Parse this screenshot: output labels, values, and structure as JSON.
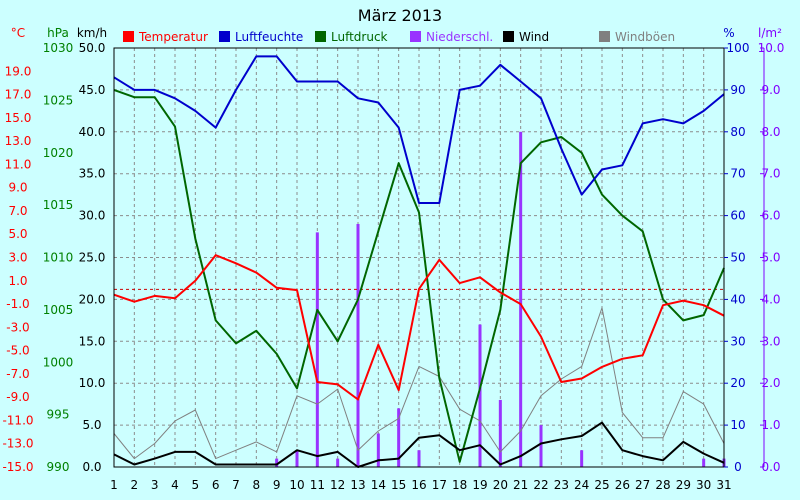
{
  "chart_data": {
    "type": "line",
    "title": "März 2013",
    "x": [
      1,
      2,
      3,
      4,
      5,
      6,
      7,
      8,
      9,
      10,
      11,
      12,
      13,
      14,
      15,
      16,
      17,
      18,
      19,
      20,
      21,
      22,
      23,
      24,
      25,
      26,
      27,
      28,
      29,
      30,
      31
    ],
    "axes": {
      "temp": {
        "unit": "°C",
        "color": "#ff0000",
        "min": -15,
        "max": 21,
        "ticks": [
          19.0,
          17.0,
          15.0,
          13.0,
          11.0,
          9.0,
          7.0,
          5.0,
          3.0,
          1.0,
          -1.0,
          -3.0,
          -5.0,
          -7.0,
          -9.0,
          -11.0,
          -13.0,
          -15.0
        ],
        "labels": [
          "19.0",
          "17.0",
          "15.0",
          "13.0",
          "11.0",
          "9.0",
          "7.0",
          "5.0",
          "3.0",
          "1.0",
          "-1.0",
          "-3.0",
          "-5.0",
          "-7.0",
          "-9.0",
          "-11.0",
          "-13.0",
          "-15.0"
        ]
      },
      "press": {
        "unit": "hPa",
        "color": "#008000",
        "min": 990,
        "max": 1030,
        "ticks": [
          1030,
          1025,
          1020,
          1015,
          1010,
          1005,
          1000,
          995,
          990
        ],
        "labels": [
          "1030",
          "1025",
          "1020",
          "1015",
          "1010",
          "1005",
          "1000",
          "995",
          "990"
        ]
      },
      "wind": {
        "unit": "km/h",
        "color": "#000000",
        "min": 0,
        "max": 50,
        "ticks": [
          50,
          45,
          40,
          35,
          30,
          25,
          20,
          15,
          10,
          5,
          0
        ],
        "labels": [
          "50.0",
          "45.0",
          "40.0",
          "35.0",
          "30.0",
          "25.0",
          "20.0",
          "15.0",
          "10.0",
          "5.0",
          "0.0"
        ]
      },
      "hum": {
        "unit": "%",
        "color": "#0000cc",
        "min": 0,
        "max": 100,
        "ticks": [
          100,
          90,
          80,
          70,
          60,
          50,
          40,
          30,
          20,
          10,
          0
        ],
        "labels": [
          "100",
          "90",
          "80",
          "70",
          "60",
          "50",
          "40",
          "30",
          "20",
          "10",
          "0"
        ]
      },
      "rain": {
        "unit": "l/m²",
        "color": "#8000ff",
        "min": 0,
        "max": 10,
        "ticks": [
          10,
          9,
          8,
          7,
          6,
          5,
          4,
          3,
          2,
          1,
          0
        ],
        "labels": [
          "10.0",
          "9.0",
          "8.0",
          "7.0",
          "6.0",
          "5.0",
          "4.0",
          "3.0",
          "2.0",
          "1.0",
          "0.0"
        ]
      }
    },
    "series": [
      {
        "name": "Temperatur",
        "axis": "temp",
        "color": "#ff0000",
        "type": "line",
        "values": [
          -0.2,
          -0.8,
          -0.3,
          -0.5,
          1.0,
          3.2,
          2.5,
          1.7,
          0.4,
          0.2,
          -7.7,
          -7.9,
          -9.2,
          -4.5,
          -8.4,
          0.3,
          2.8,
          0.8,
          1.3,
          0.0,
          -1.0,
          -3.8,
          -7.7,
          -7.4,
          -6.4,
          -5.7,
          -5.4,
          -1.1,
          -0.7,
          -1.1,
          -2.0
        ]
      },
      {
        "name": "Luftfeuchte",
        "axis": "hum",
        "color": "#0000cc",
        "type": "line",
        "values": [
          93,
          90,
          90,
          88,
          85,
          81,
          90,
          98,
          98,
          92,
          92,
          92,
          88,
          87,
          81,
          63,
          63,
          90,
          91,
          96,
          92,
          88,
          76,
          65,
          71,
          72,
          82,
          83,
          82,
          85,
          89
        ]
      },
      {
        "name": "Luftdruck",
        "axis": "press",
        "color": "#006600",
        "type": "line",
        "values": [
          1026.0,
          1025.3,
          1025.3,
          1022.5,
          1011.8,
          1004.0,
          1001.8,
          1003.0,
          1000.8,
          997.5,
          1005.0,
          1002.0,
          1006.0,
          1012.5,
          1019.0,
          1014.3,
          998.5,
          990.5,
          997.5,
          1005.0,
          1019.0,
          1021.0,
          1021.5,
          1020.0,
          1016.0,
          1014.0,
          1012.5,
          1006.0,
          1004.0,
          1004.5,
          1009.0
        ]
      },
      {
        "name": "Niederschl.",
        "axis": "rain",
        "color": "#9933ff",
        "type": "bar",
        "values": [
          0,
          0,
          0,
          0,
          0,
          0,
          0,
          0,
          0.2,
          0.4,
          5.6,
          0.2,
          5.8,
          0.8,
          1.4,
          0.4,
          0,
          0,
          3.4,
          1.6,
          8.0,
          1.0,
          0,
          0.4,
          0,
          0,
          0,
          0,
          0,
          0.2,
          0.2
        ]
      },
      {
        "name": "Wind",
        "axis": "wind",
        "color": "#000000",
        "type": "line",
        "values": [
          1.5,
          0.3,
          1.0,
          1.8,
          1.8,
          0.3,
          0.3,
          0.3,
          0.3,
          2.0,
          1.3,
          1.8,
          0.0,
          0.8,
          1.0,
          3.5,
          3.8,
          2.0,
          2.6,
          0.3,
          1.3,
          2.8,
          3.3,
          3.7,
          5.3,
          2.0,
          1.3,
          0.8,
          3.0,
          1.6,
          0.5
        ]
      },
      {
        "name": "Windböen",
        "axis": "wind",
        "color": "#808080",
        "type": "line",
        "values": [
          4.0,
          1.0,
          2.8,
          5.5,
          6.8,
          1.0,
          2.0,
          3.0,
          1.8,
          8.5,
          7.5,
          9.3,
          2.0,
          4.3,
          5.8,
          12.0,
          10.8,
          6.9,
          5.5,
          1.8,
          4.3,
          8.5,
          10.5,
          12.0,
          19.0,
          6.5,
          3.5,
          3.5,
          9.0,
          7.5,
          2.8
        ]
      }
    ],
    "reference_line": {
      "axis": "wind",
      "value": 21.2,
      "color": "#cc0000"
    },
    "grid": true,
    "legend": "top"
  }
}
